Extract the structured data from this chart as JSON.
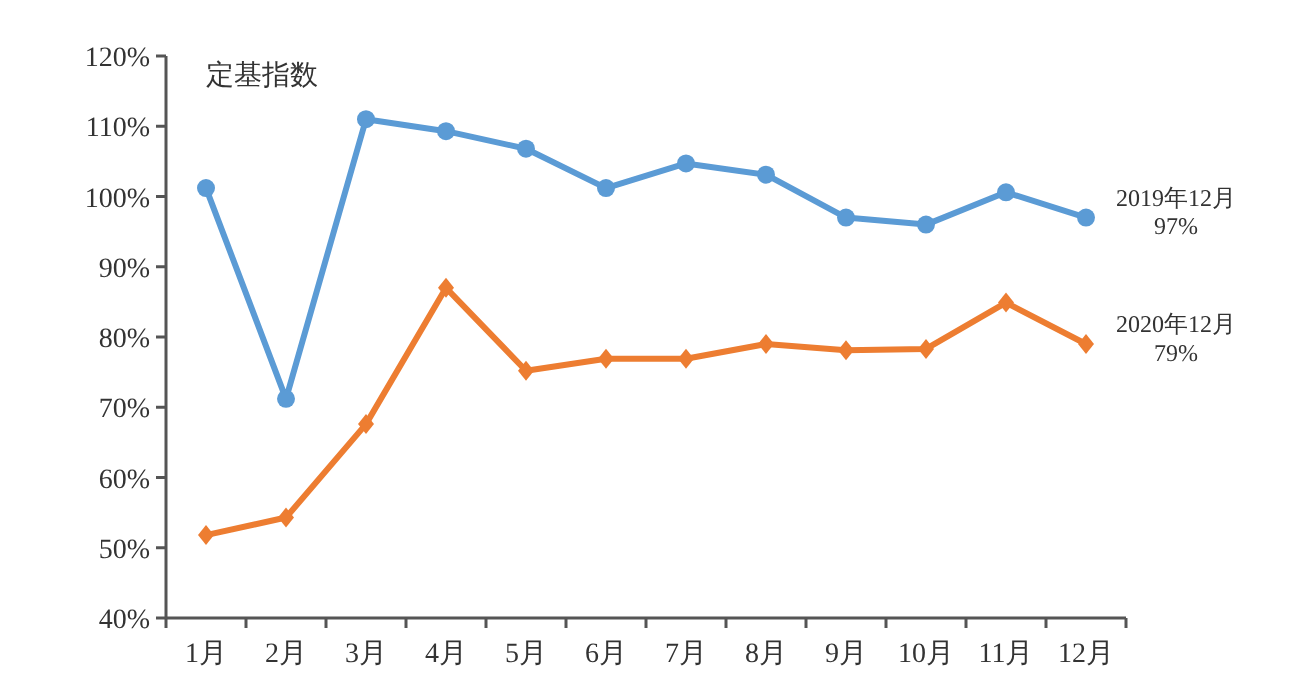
{
  "chart_data": {
    "type": "line",
    "title": "定基指数",
    "categories": [
      "1月",
      "2月",
      "3月",
      "4月",
      "5月",
      "6月",
      "7月",
      "8月",
      "9月",
      "10月",
      "11月",
      "12月"
    ],
    "series": [
      {
        "color": "#5b9bd5",
        "marker": "circle",
        "values": [
          101.2,
          71.2,
          111,
          109.3,
          106.8,
          101.2,
          104.7,
          103.1,
          97,
          96,
          100.6,
          97
        ]
      },
      {
        "color": "#ed7d31",
        "marker": "diamond",
        "values": [
          51.8,
          54.3,
          67.6,
          87,
          75.2,
          76.9,
          76.9,
          79,
          78.1,
          78.3,
          84.9,
          79
        ]
      }
    ],
    "ylim": [
      40,
      120
    ],
    "yticks": [
      {
        "value": 40,
        "label": "40%"
      },
      {
        "value": 50,
        "label": "50%"
      },
      {
        "value": 60,
        "label": "60%"
      },
      {
        "value": 70,
        "label": "70%"
      },
      {
        "value": 80,
        "label": "80%"
      },
      {
        "value": 90,
        "label": "90%"
      },
      {
        "value": 100,
        "label": "100%"
      },
      {
        "value": 110,
        "label": "110%"
      },
      {
        "value": 120,
        "label": "120%"
      }
    ],
    "annotations": [
      {
        "text": "2019年12月\n97%",
        "x": "12月",
        "y": 97
      },
      {
        "text": "2020年12月\n79%",
        "x": "12月",
        "y": 79
      }
    ],
    "grid": false,
    "line_style": "solid"
  }
}
